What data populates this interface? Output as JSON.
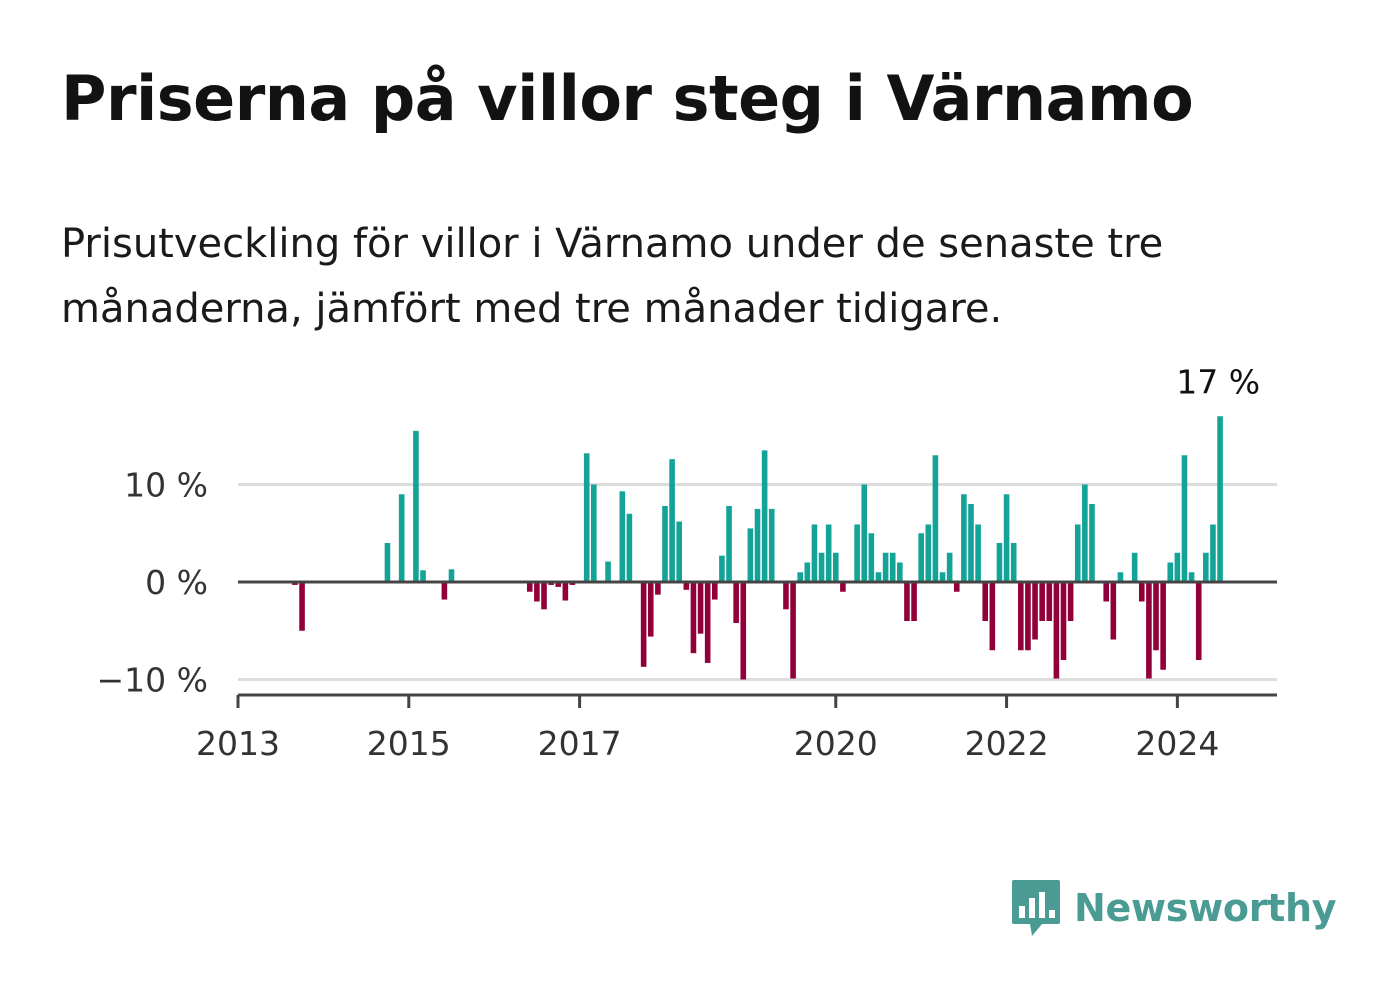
{
  "header": {
    "title": "Priserna på villor steg i Värnamo",
    "subtitle": "Prisutveckling för villor i Värnamo under de senaste tre månaderna, jämfört med tre månader tidigare."
  },
  "brand": {
    "name": "Newsworthy"
  },
  "colors": {
    "positive": "#13a397",
    "negative": "#92003a",
    "gridline": "#dcdcdc",
    "axis": "#444444",
    "brand": "#4a9b94"
  },
  "chart_data": {
    "type": "bar",
    "title": "",
    "xlabel": "",
    "ylabel": "",
    "y_unit": "%",
    "ylim": [
      -11.5,
      17
    ],
    "y_ticks": [
      {
        "value": 10,
        "label": "10 %"
      },
      {
        "value": 0,
        "label": "0 %"
      },
      {
        "value": -10,
        "label": "−10 %"
      }
    ],
    "x_range": [
      "2013-01",
      "2025-03"
    ],
    "x_ticks": [
      {
        "date": "2013-01",
        "label": "2013"
      },
      {
        "date": "2015-01",
        "label": "2015"
      },
      {
        "date": "2017-01",
        "label": "2017"
      },
      {
        "date": "2020-01",
        "label": "2020"
      },
      {
        "date": "2022-01",
        "label": "2022"
      },
      {
        "date": "2024-01",
        "label": "2024"
      }
    ],
    "grid": true,
    "last_value_label": "17 %",
    "series": [
      {
        "points": [
          {
            "date": "2013-09",
            "value": -0.3
          },
          {
            "date": "2013-10",
            "value": -5
          },
          {
            "date": "2014-10",
            "value": 4
          },
          {
            "date": "2014-12",
            "value": 9
          },
          {
            "date": "2015-02",
            "value": 15.5
          },
          {
            "date": "2015-03",
            "value": 1.2
          },
          {
            "date": "2015-06",
            "value": -1.8
          },
          {
            "date": "2015-07",
            "value": 1.3
          },
          {
            "date": "2016-06",
            "value": -1
          },
          {
            "date": "2016-07",
            "value": -2
          },
          {
            "date": "2016-08",
            "value": -2.8
          },
          {
            "date": "2016-09",
            "value": -0.3
          },
          {
            "date": "2016-10",
            "value": -0.5
          },
          {
            "date": "2016-11",
            "value": -1.9
          },
          {
            "date": "2016-12",
            "value": -0.3
          },
          {
            "date": "2017-02",
            "value": 13.2
          },
          {
            "date": "2017-03",
            "value": 10
          },
          {
            "date": "2017-05",
            "value": 2.1
          },
          {
            "date": "2017-07",
            "value": 9.3
          },
          {
            "date": "2017-08",
            "value": 7
          },
          {
            "date": "2017-10",
            "value": -8.7
          },
          {
            "date": "2017-11",
            "value": -5.6
          },
          {
            "date": "2017-12",
            "value": -1.3
          },
          {
            "date": "2018-01",
            "value": 7.8
          },
          {
            "date": "2018-02",
            "value": 12.6
          },
          {
            "date": "2018-03",
            "value": 6.2
          },
          {
            "date": "2018-04",
            "value": -0.8
          },
          {
            "date": "2018-05",
            "value": -7.3
          },
          {
            "date": "2018-06",
            "value": -5.3
          },
          {
            "date": "2018-07",
            "value": -8.3
          },
          {
            "date": "2018-08",
            "value": -1.8
          },
          {
            "date": "2018-09",
            "value": 2.7
          },
          {
            "date": "2018-10",
            "value": 7.8
          },
          {
            "date": "2018-11",
            "value": -4.2
          },
          {
            "date": "2018-12",
            "value": -10
          },
          {
            "date": "2019-01",
            "value": 5.5
          },
          {
            "date": "2019-02",
            "value": 7.5
          },
          {
            "date": "2019-03",
            "value": 13.5
          },
          {
            "date": "2019-04",
            "value": 7.5
          },
          {
            "date": "2019-06",
            "value": -2.8
          },
          {
            "date": "2019-07",
            "value": -9.9
          },
          {
            "date": "2019-08",
            "value": 1
          },
          {
            "date": "2019-09",
            "value": 2
          },
          {
            "date": "2019-10",
            "value": 5.9
          },
          {
            "date": "2019-11",
            "value": 3
          },
          {
            "date": "2019-12",
            "value": 5.9
          },
          {
            "date": "2020-01",
            "value": 3
          },
          {
            "date": "2020-02",
            "value": -1
          },
          {
            "date": "2020-04",
            "value": 5.9
          },
          {
            "date": "2020-05",
            "value": 10
          },
          {
            "date": "2020-06",
            "value": 5
          },
          {
            "date": "2020-07",
            "value": 1
          },
          {
            "date": "2020-08",
            "value": 3
          },
          {
            "date": "2020-09",
            "value": 3
          },
          {
            "date": "2020-10",
            "value": 2
          },
          {
            "date": "2020-11",
            "value": -4
          },
          {
            "date": "2020-12",
            "value": -4
          },
          {
            "date": "2021-01",
            "value": 5
          },
          {
            "date": "2021-02",
            "value": 5.9
          },
          {
            "date": "2021-03",
            "value": 13
          },
          {
            "date": "2021-04",
            "value": 1
          },
          {
            "date": "2021-05",
            "value": 3
          },
          {
            "date": "2021-06",
            "value": -1
          },
          {
            "date": "2021-07",
            "value": 9
          },
          {
            "date": "2021-08",
            "value": 8
          },
          {
            "date": "2021-09",
            "value": 5.9
          },
          {
            "date": "2021-10",
            "value": -4
          },
          {
            "date": "2021-11",
            "value": -7
          },
          {
            "date": "2021-12",
            "value": 4
          },
          {
            "date": "2022-01",
            "value": 9
          },
          {
            "date": "2022-02",
            "value": 4
          },
          {
            "date": "2022-03",
            "value": -7
          },
          {
            "date": "2022-04",
            "value": -7
          },
          {
            "date": "2022-05",
            "value": -5.9
          },
          {
            "date": "2022-06",
            "value": -4
          },
          {
            "date": "2022-07",
            "value": -4
          },
          {
            "date": "2022-08",
            "value": -9.9
          },
          {
            "date": "2022-09",
            "value": -8
          },
          {
            "date": "2022-10",
            "value": -4
          },
          {
            "date": "2022-11",
            "value": 5.9
          },
          {
            "date": "2022-12",
            "value": 10
          },
          {
            "date": "2023-01",
            "value": 8
          },
          {
            "date": "2023-03",
            "value": -2
          },
          {
            "date": "2023-04",
            "value": -5.9
          },
          {
            "date": "2023-05",
            "value": 1
          },
          {
            "date": "2023-07",
            "value": 3
          },
          {
            "date": "2023-08",
            "value": -2
          },
          {
            "date": "2023-09",
            "value": -9.9
          },
          {
            "date": "2023-10",
            "value": -7
          },
          {
            "date": "2023-11",
            "value": -9
          },
          {
            "date": "2023-12",
            "value": 2
          },
          {
            "date": "2024-01",
            "value": 3
          },
          {
            "date": "2024-02",
            "value": 13
          },
          {
            "date": "2024-03",
            "value": 1
          },
          {
            "date": "2024-04",
            "value": -8
          },
          {
            "date": "2024-05",
            "value": 3
          },
          {
            "date": "2024-06",
            "value": 5.9
          },
          {
            "date": "2024-07",
            "value": 17
          }
        ]
      }
    ]
  }
}
